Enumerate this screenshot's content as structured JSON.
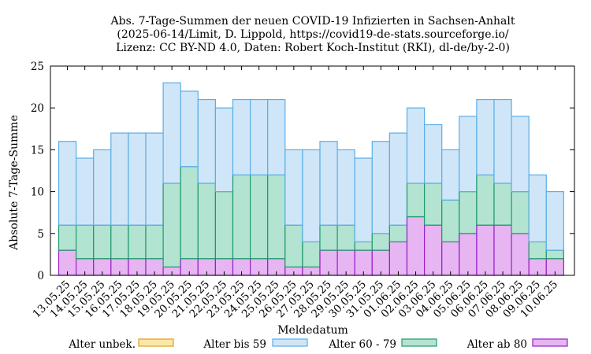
{
  "chart_data": {
    "type": "bar",
    "stacked": true,
    "title": [
      "Abs. 7-Tage-Summen der neuen COVID-19 Infizierten in Sachsen-Anhalt",
      "(2025-06-14/Limit, D. Lippold, https://covid19-de-stats.sourceforge.io/",
      "Lizenz: CC BY-ND 4.0, Daten: Robert Koch-Institut (RKI), dl-de/by-2-0)"
    ],
    "xlabel": "Meldedatum",
    "ylabel": "Absolute 7-Tage-Summe",
    "ylim": [
      0,
      25
    ],
    "yticks": [
      0,
      5,
      10,
      15,
      20,
      25
    ],
    "categories": [
      "13.05.25",
      "14.05.25",
      "15.05.25",
      "16.05.25",
      "17.05.25",
      "18.05.25",
      "19.05.25",
      "20.05.25",
      "21.05.25",
      "22.05.25",
      "23.05.25",
      "24.05.25",
      "25.05.25",
      "26.05.25",
      "27.05.25",
      "28.05.25",
      "29.05.25",
      "30.05.25",
      "31.05.25",
      "01.06.25",
      "02.06.25",
      "03.06.25",
      "04.06.25",
      "05.06.25",
      "06.06.25",
      "07.06.25",
      "08.06.25",
      "09.06.25",
      "10.06.25"
    ],
    "legend_position": "bottom",
    "grid": false,
    "series": [
      {
        "name": "Alter unbek.",
        "fill": "#fde7a8",
        "stroke": "#e0a020",
        "values": [
          0,
          0,
          0,
          0,
          0,
          0,
          0,
          0,
          0,
          0,
          0,
          0,
          0,
          0,
          0,
          0,
          0,
          0,
          0,
          0,
          0,
          0,
          0,
          0,
          0,
          0,
          0,
          0,
          0
        ]
      },
      {
        "name": "Alter bis 59",
        "fill": "#cfe6f8",
        "stroke": "#5aaee6",
        "values": [
          10,
          8,
          9,
          11,
          11,
          11,
          12,
          9,
          10,
          10,
          9,
          9,
          9,
          9,
          11,
          10,
          9,
          10,
          11,
          11,
          9,
          7,
          6,
          9,
          9,
          10,
          9,
          8,
          7
        ]
      },
      {
        "name": "Alter 60 - 79",
        "fill": "#b3e3d1",
        "stroke": "#1e9a6a",
        "values": [
          3,
          4,
          4,
          4,
          4,
          4,
          10,
          11,
          9,
          8,
          10,
          10,
          10,
          5,
          3,
          3,
          3,
          1,
          2,
          2,
          4,
          5,
          5,
          5,
          6,
          5,
          5,
          2,
          1
        ]
      },
      {
        "name": "Alter ab 80",
        "fill": "#e6b5f2",
        "stroke": "#9a1fc8",
        "values": [
          3,
          2,
          2,
          2,
          2,
          2,
          1,
          2,
          2,
          2,
          2,
          2,
          2,
          1,
          1,
          3,
          3,
          3,
          3,
          4,
          7,
          6,
          4,
          5,
          6,
          6,
          5,
          2,
          2
        ]
      }
    ]
  }
}
